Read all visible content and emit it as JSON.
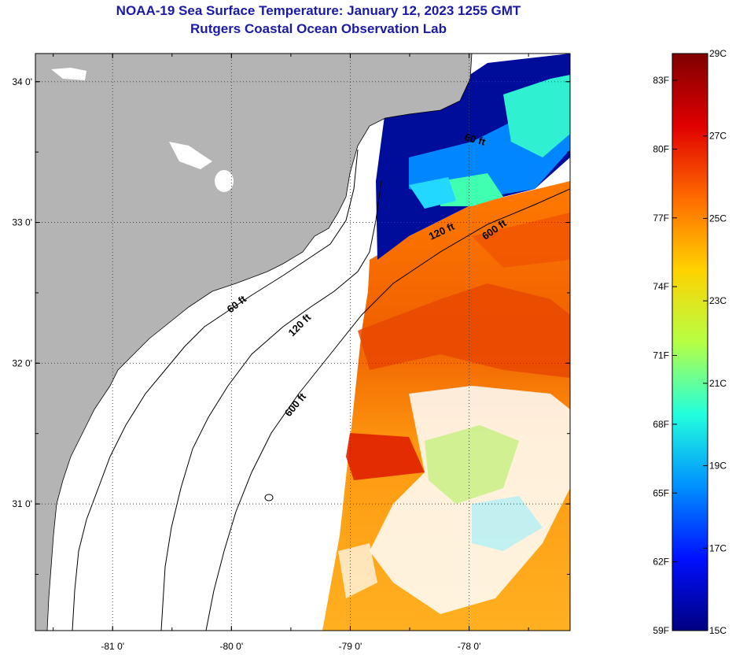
{
  "title": {
    "line1": "NOAA-19 Sea Surface Temperature:  January 12, 2023 1255 GMT",
    "line2": "Rutgers Coastal Ocean Observation Lab"
  },
  "map": {
    "lon_range": [
      -81.65,
      -77.15
    ],
    "lat_range": [
      30.1,
      34.2
    ],
    "lon_ticks": [
      {
        "value": -81,
        "label": "-81 0'"
      },
      {
        "value": -80,
        "label": "-80 0'"
      },
      {
        "value": -79,
        "label": "-79 0'"
      },
      {
        "value": -78,
        "label": "-78 0'"
      }
    ],
    "lat_ticks": [
      {
        "value": 34,
        "label": "34 0'"
      },
      {
        "value": 33,
        "label": "33 0'"
      },
      {
        "value": 32,
        "label": "32 0'"
      },
      {
        "value": 31,
        "label": "31 0'"
      }
    ],
    "land_color": "#b4b4b4",
    "nodata_color": "#ffffff",
    "contours": [
      {
        "label": "60 ft"
      },
      {
        "label": "120 ft"
      },
      {
        "label": "600 ft"
      },
      {
        "label": "120 ft"
      },
      {
        "label": "600 ft"
      },
      {
        "label": "60 ft"
      }
    ]
  },
  "colorbar": {
    "celsius_labels": [
      "29C",
      "27C",
      "25C",
      "23C",
      "21C",
      "19C",
      "17C",
      "15C"
    ],
    "fahrenheit_labels": [
      "83F",
      "80F",
      "77F",
      "74F",
      "71F",
      "68F",
      "65F",
      "62F",
      "59F"
    ],
    "colors": [
      "#7f0000",
      "#e00000",
      "#ff6a00",
      "#ffd200",
      "#b6ff44",
      "#22ffdd",
      "#0090ff",
      "#0010ff",
      "#000080"
    ]
  }
}
